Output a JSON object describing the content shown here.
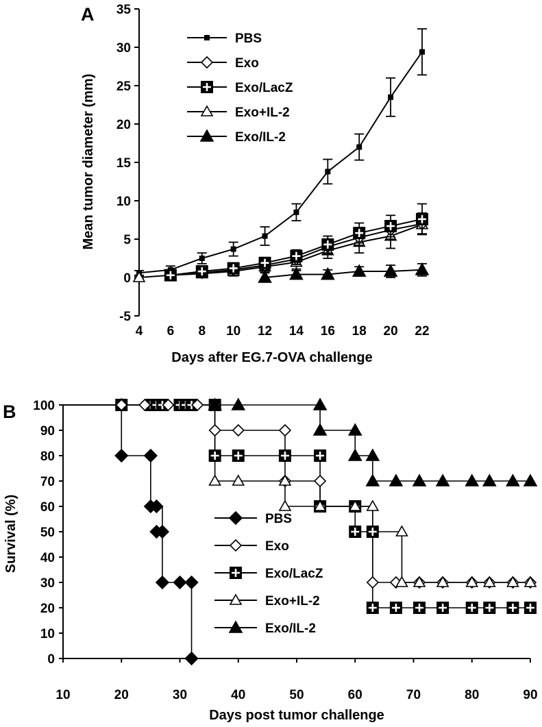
{
  "chart_data": [
    {
      "panel": "A",
      "type": "line",
      "xlabel": "Days after EG.7-OVA challenge",
      "ylabel": "Mean  tumor  diameter (mm)",
      "xlim": [
        4,
        22
      ],
      "ylim": [
        -5,
        35
      ],
      "xticks": [
        4,
        6,
        8,
        10,
        12,
        14,
        16,
        18,
        20,
        22
      ],
      "yticks": [
        -5,
        0,
        5,
        10,
        15,
        20,
        25,
        30,
        35
      ],
      "legend_position": "top-left",
      "grid": false,
      "error_bars": true,
      "series": [
        {
          "name": "PBS",
          "marker": "small-square",
          "x": [
            4,
            6,
            8,
            10,
            12,
            14,
            16,
            18,
            20,
            22
          ],
          "y": [
            0.6,
            1.0,
            2.5,
            3.7,
            5.4,
            8.5,
            13.8,
            17.0,
            23.5,
            29.4
          ],
          "err": [
            0.3,
            0.5,
            0.7,
            0.9,
            1.2,
            1.1,
            1.6,
            1.7,
            2.5,
            3.0
          ]
        },
        {
          "name": "Exo",
          "marker": "open-diamond",
          "x": [
            6,
            8,
            10,
            12,
            14,
            16,
            18,
            20,
            22
          ],
          "y": [
            0.3,
            0.6,
            1.0,
            1.6,
            2.4,
            4.0,
            5.2,
            6.2,
            7.0
          ],
          "err": [
            0.3,
            0.4,
            0.5,
            0.6,
            0.7,
            0.9,
            1.0,
            1.2,
            1.4
          ]
        },
        {
          "name": "Exo/LacZ",
          "marker": "cross-square",
          "x": [
            6,
            8,
            10,
            12,
            14,
            16,
            18,
            20,
            22
          ],
          "y": [
            0.3,
            0.8,
            1.2,
            1.9,
            2.8,
            4.3,
            5.8,
            6.7,
            7.6
          ],
          "err": [
            0.3,
            0.5,
            0.6,
            0.7,
            0.8,
            1.1,
            1.3,
            1.4,
            2.0
          ]
        },
        {
          "name": "Exo+IL-2",
          "marker": "open-triangle",
          "x": [
            4,
            6,
            8,
            10,
            12,
            14,
            16,
            18,
            20,
            22
          ],
          "y": [
            0.0,
            0.3,
            0.5,
            0.8,
            1.4,
            2.0,
            3.5,
            4.6,
            5.4,
            6.9
          ],
          "err": [
            0.2,
            0.3,
            0.4,
            0.6,
            0.7,
            0.9,
            1.0,
            1.4,
            1.6,
            1.2
          ]
        },
        {
          "name": "Exo/IL-2",
          "marker": "filled-triangle",
          "x": [
            12,
            14,
            16,
            18,
            20,
            22
          ],
          "y": [
            0.0,
            0.4,
            0.4,
            0.8,
            0.8,
            1.0
          ],
          "err": [
            0.6,
            0.5,
            0.6,
            0.6,
            0.8,
            0.8
          ]
        }
      ]
    },
    {
      "panel": "B",
      "type": "line",
      "step": true,
      "xlabel": "Days post tumor challenge",
      "ylabel": "Survival (%)",
      "xlim": [
        10,
        90
      ],
      "ylim": [
        0,
        100
      ],
      "xticks": [
        10,
        20,
        30,
        40,
        50,
        60,
        70,
        80,
        90
      ],
      "yticks": [
        0,
        10,
        20,
        30,
        40,
        50,
        60,
        70,
        80,
        90,
        100
      ],
      "legend_position": "bottom-center",
      "grid": false,
      "series": [
        {
          "name": "PBS",
          "marker": "filled-diamond",
          "steps": [
            [
              10,
              100
            ],
            [
              20,
              80
            ],
            [
              25,
              60
            ],
            [
              27,
              30
            ],
            [
              32,
              0
            ]
          ],
          "markers": [
            [
              20,
              100
            ],
            [
              20,
              80
            ],
            [
              25,
              80
            ],
            [
              25,
              60
            ],
            [
              26,
              60
            ],
            [
              26,
              50
            ],
            [
              27,
              50
            ],
            [
              27,
              30
            ],
            [
              30,
              30
            ],
            [
              32,
              30
            ],
            [
              32,
              0
            ]
          ]
        },
        {
          "name": "Exo",
          "marker": "open-diamond",
          "steps": [
            [
              10,
              100
            ],
            [
              36,
              90
            ],
            [
              48,
              70
            ],
            [
              54,
              60
            ],
            [
              63,
              30
            ],
            [
              90,
              30
            ]
          ],
          "markers": [
            [
              20,
              100
            ],
            [
              24,
              100
            ],
            [
              28,
              100
            ],
            [
              33,
              100
            ],
            [
              36,
              90
            ],
            [
              40,
              90
            ],
            [
              48,
              90
            ],
            [
              48,
              70
            ],
            [
              54,
              70
            ],
            [
              54,
              60
            ],
            [
              63,
              30
            ],
            [
              67,
              30
            ],
            [
              71,
              30
            ],
            [
              75,
              30
            ],
            [
              80,
              30
            ],
            [
              83,
              30
            ],
            [
              87,
              30
            ],
            [
              90,
              30
            ]
          ]
        },
        {
          "name": "Exo/LacZ",
          "marker": "cross-square",
          "steps": [
            [
              10,
              100
            ],
            [
              36,
              80
            ],
            [
              54,
              60
            ],
            [
              60,
              50
            ],
            [
              63,
              20
            ],
            [
              90,
              20
            ]
          ],
          "markers": [
            [
              20,
              100
            ],
            [
              25,
              100
            ],
            [
              26,
              100
            ],
            [
              27,
              100
            ],
            [
              30,
              100
            ],
            [
              31,
              100
            ],
            [
              32,
              100
            ],
            [
              36,
              100
            ],
            [
              36,
              80
            ],
            [
              40,
              80
            ],
            [
              48,
              80
            ],
            [
              54,
              80
            ],
            [
              54,
              60
            ],
            [
              60,
              60
            ],
            [
              60,
              50
            ],
            [
              63,
              50
            ],
            [
              63,
              20
            ],
            [
              67,
              20
            ],
            [
              71,
              20
            ],
            [
              75,
              20
            ],
            [
              80,
              20
            ],
            [
              83,
              20
            ],
            [
              87,
              20
            ],
            [
              90,
              20
            ]
          ]
        },
        {
          "name": "Exo+IL-2",
          "marker": "open-triangle",
          "steps": [
            [
              10,
              100
            ],
            [
              36,
              70
            ],
            [
              48,
              60
            ],
            [
              63,
              50
            ],
            [
              68,
              30
            ],
            [
              90,
              30
            ]
          ],
          "markers": [
            [
              36,
              70
            ],
            [
              40,
              70
            ],
            [
              48,
              70
            ],
            [
              48,
              60
            ],
            [
              54,
              60
            ],
            [
              60,
              60
            ],
            [
              63,
              60
            ],
            [
              68,
              50
            ],
            [
              68,
              30
            ],
            [
              71,
              30
            ],
            [
              75,
              30
            ],
            [
              80,
              30
            ],
            [
              83,
              30
            ],
            [
              87,
              30
            ],
            [
              90,
              30
            ]
          ]
        },
        {
          "name": "Exo/IL-2",
          "marker": "filled-triangle",
          "steps": [
            [
              10,
              100
            ],
            [
              54,
              90
            ],
            [
              60,
              80
            ],
            [
              63,
              70
            ],
            [
              90,
              70
            ]
          ],
          "markers": [
            [
              36,
              100
            ],
            [
              40,
              100
            ],
            [
              54,
              100
            ],
            [
              54,
              90
            ],
            [
              60,
              90
            ],
            [
              60,
              80
            ],
            [
              63,
              80
            ],
            [
              63,
              70
            ],
            [
              67,
              70
            ],
            [
              71,
              70
            ],
            [
              75,
              70
            ],
            [
              80,
              70
            ],
            [
              83,
              70
            ],
            [
              87,
              70
            ],
            [
              90,
              70
            ]
          ]
        }
      ]
    }
  ]
}
